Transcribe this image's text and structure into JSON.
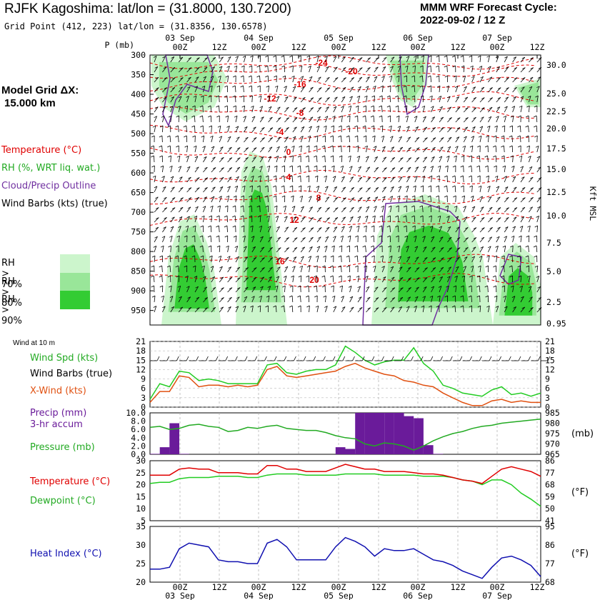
{
  "header": {
    "title": "RJFK Kagoshima:  lat/lon = (31.8000, 130.7200)",
    "gridpoint": "Grid Point (412, 223) lat/lon = (31.8356, 130.6578)",
    "cycle_line1": "MMM WRF Forecast Cycle:",
    "cycle_line2": "2022-09-02 / 12  Z"
  },
  "time_axis": {
    "dates": [
      "03 Sep",
      "04 Sep",
      "05 Sep",
      "06 Sep",
      "07 Sep"
    ],
    "hours": [
      "00Z",
      "12Z",
      "00Z",
      "12Z",
      "00Z",
      "12Z",
      "00Z",
      "12Z",
      "00Z",
      "12Z"
    ]
  },
  "left_panel": {
    "model_grid_label": "Model Grid ΔX:",
    "model_grid_value": "15.000 km",
    "legend_temperature": "Temperature (°C)",
    "legend_rh": "RH (%, WRT liq. wat.)",
    "legend_cloud": "Cloud/Precip Outline",
    "legend_barbs": "Wind Barbs (kts) (true)",
    "rh_levels": [
      "RH > 70%",
      "RH > 80%",
      "RH > 90%"
    ],
    "rh_colors": [
      "#ccf5cc",
      "#99e699",
      "#33cc33"
    ],
    "wind_10m_label": "Wind at 10 m",
    "wind_spd_label": "Wind Spd (kts)",
    "wind_barbs_label": "Wind Barbs (true)",
    "xwind_label": "X-Wind (kts)",
    "precip_label_1": "Precip (mm)",
    "precip_label_2": "3-hr accum",
    "pressure_label": "Pressure (mb)",
    "temperature_label": "Temperature (°C)",
    "dewpoint_label": "Dewpoint (°C)",
    "heat_index_label": "Heat Index (°C)"
  },
  "colors": {
    "temperature": "#e00000",
    "rh_green": "#22bb22",
    "cloud": "#7030a0",
    "wind_spd": "#22cc22",
    "xwind": "#e05010",
    "precip": "#6a1b9a",
    "pressure": "#22aa22",
    "dewpoint": "#22cc22",
    "heat_index": "#1010b0"
  },
  "chart_data": [
    {
      "type": "heatmap",
      "name": "time-height cross section",
      "ylabel": "P (mb)",
      "yticks": [
        "300",
        "350",
        "400",
        "450",
        "500",
        "550",
        "600",
        "650",
        "700",
        "750",
        "800",
        "850",
        "900",
        "950"
      ],
      "right_label": "Kft MSL",
      "right_ticks": [
        "30.0",
        "25.0",
        "22.5",
        "20.0",
        "17.5",
        "15.0",
        "12.5",
        "10.0",
        "7.5",
        "5.0",
        "2.5",
        "0.95"
      ],
      "temperature_contour_labels": [
        "-24",
        "-20",
        "-16",
        "-12",
        "-8",
        "-4",
        "0",
        "4",
        "8",
        "12",
        "16",
        "20"
      ]
    },
    {
      "type": "line",
      "name": "10 m wind",
      "x_hours": [
        0,
        3,
        6,
        9,
        12,
        15,
        18,
        21,
        24,
        27,
        30,
        33,
        36,
        39,
        42,
        45,
        48,
        51,
        54,
        57,
        60,
        63,
        66,
        69,
        72,
        75,
        78,
        81,
        84,
        87,
        90,
        93,
        96,
        99,
        102,
        105,
        108,
        111,
        114,
        117,
        120
      ],
      "ylim": [
        0,
        21
      ],
      "yticks": [
        "21",
        "18",
        "15",
        "12",
        "9",
        "6",
        "3",
        "0"
      ],
      "series": [
        {
          "name": "Wind Spd (kts)",
          "values": [
            2.5,
            7.5,
            6.5,
            11.5,
            11,
            8.5,
            9,
            8.5,
            7.5,
            7.5,
            7.5,
            7.5,
            13.5,
            14,
            11,
            10.5,
            11.5,
            12,
            12,
            13.5,
            19.5,
            17.5,
            15,
            13.5,
            14.5,
            15,
            15,
            19,
            14,
            11.5,
            7,
            6,
            4.5,
            4,
            3.5,
            5.5,
            6.5,
            4,
            4.5,
            3.5,
            4.5
          ]
        },
        {
          "name": "X-Wind (kts)",
          "values": [
            1.5,
            5,
            5,
            10,
            9.5,
            6.5,
            7,
            7,
            6.5,
            7,
            6.5,
            7,
            12,
            13,
            10,
            9.5,
            10,
            10.5,
            11,
            11.5,
            13,
            14,
            12.5,
            11.5,
            10.5,
            10,
            8.5,
            8,
            7,
            6.5,
            4.5,
            3,
            1.5,
            0.5,
            0.5,
            2,
            2.5,
            1.5,
            2,
            1.5,
            1.5
          ]
        }
      ]
    },
    {
      "type": "bar",
      "name": "Precip 3-hr accum",
      "x_hours": [
        3,
        6,
        9,
        12,
        60,
        63,
        66,
        69,
        72,
        75,
        78,
        81,
        84,
        87,
        90
      ],
      "ylim": [
        0,
        10
      ],
      "yticks": [
        "10.0",
        "8.0",
        "6.0",
        "4.0",
        "2.0",
        "0.0"
      ],
      "values": [
        0.1,
        1.7,
        7.5,
        0.1,
        1.7,
        1.3,
        10,
        10,
        10,
        10,
        10,
        9.2,
        8.7,
        2.2,
        0.1
      ]
    },
    {
      "type": "line",
      "name": "Pressure (mb)",
      "ylim": [
        965,
        985
      ],
      "right_ticks": [
        "985",
        "980",
        "975",
        "970",
        "965"
      ],
      "values": [
        978,
        978.5,
        977,
        977.5,
        979,
        979.5,
        978.5,
        978,
        976,
        976.5,
        978,
        977.5,
        978.5,
        979,
        977.5,
        977,
        976.5,
        976.5,
        975.5,
        974,
        973,
        972.5,
        970,
        969,
        970.5,
        970,
        969,
        967,
        969,
        971.5,
        973.5,
        975,
        976,
        977.5,
        978.5,
        979,
        980,
        980.5,
        981,
        981.5,
        982
      ]
    },
    {
      "type": "line",
      "name": "Temperature / Dewpoint",
      "ylim": [
        5,
        30
      ],
      "yticks": [
        "30",
        "25",
        "20",
        "15",
        "10",
        "5"
      ],
      "right_ticks": [
        "86",
        "77",
        "68",
        "59",
        "50",
        "41"
      ],
      "series": [
        {
          "name": "Temperature (°C)",
          "values": [
            24,
            24,
            24,
            26.5,
            27,
            26.5,
            26.5,
            25,
            25,
            25,
            24.5,
            24.5,
            28,
            28,
            26.5,
            26.5,
            25.5,
            25.5,
            25.5,
            27,
            28.5,
            27.5,
            26.5,
            26.5,
            25.5,
            25.5,
            25.5,
            25,
            24.5,
            24.5,
            24,
            23,
            22,
            21.5,
            20.5,
            23.5,
            26.5,
            27.5,
            26.5,
            25.5,
            23.5
          ]
        },
        {
          "name": "Dewpoint (°C)",
          "values": [
            20.5,
            21,
            21,
            22.5,
            23,
            23,
            23,
            23.5,
            23.5,
            23.5,
            23,
            23,
            24,
            24.5,
            24.5,
            24.5,
            24,
            24,
            24,
            24,
            24.5,
            24.5,
            24.5,
            24.5,
            24,
            24,
            24,
            24,
            23.5,
            23.5,
            23.5,
            23,
            22,
            21.5,
            20,
            22,
            22,
            20,
            16.5,
            14,
            11
          ]
        }
      ]
    },
    {
      "type": "line",
      "name": "Heat Index (°C)",
      "ylim": [
        20,
        35
      ],
      "yticks": [
        "35",
        "30",
        "25",
        "20"
      ],
      "right_ticks": [
        "95",
        "86",
        "77",
        "68"
      ],
      "values": [
        23.5,
        23.5,
        24,
        29,
        30.5,
        30,
        29.5,
        26,
        25.5,
        25.5,
        25,
        25,
        30.5,
        31.5,
        29.5,
        26,
        26,
        26,
        26,
        29.5,
        32,
        31,
        29.5,
        27,
        29,
        28.5,
        28.5,
        29,
        27.5,
        26,
        25.5,
        24.5,
        23,
        22,
        21,
        24,
        26.5,
        27,
        26,
        24.5,
        21.5
      ]
    }
  ]
}
